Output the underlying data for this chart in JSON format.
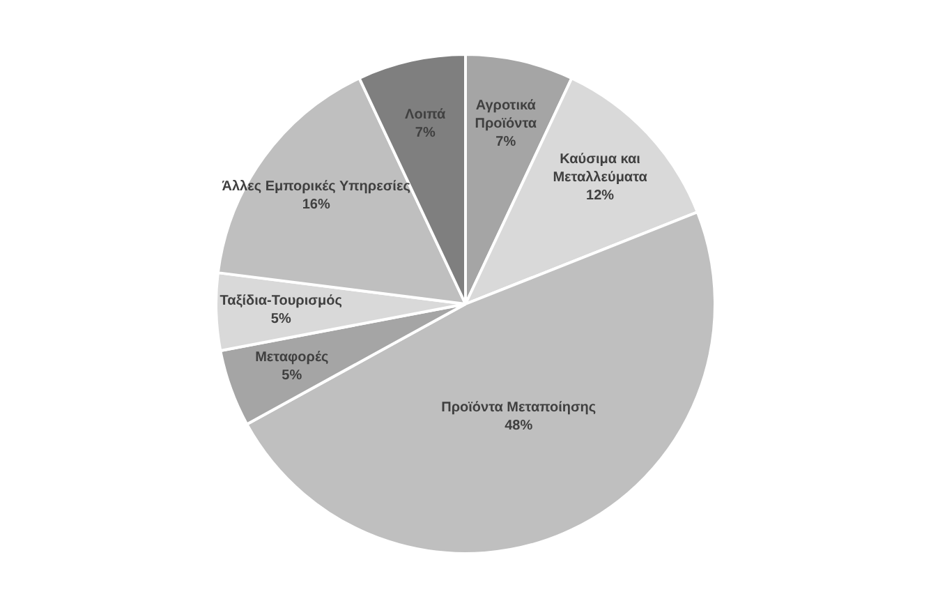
{
  "chart_data": {
    "type": "pie",
    "categories": [
      "Αγροτικά Προϊόντα",
      "Καύσιμα και Μεταλλεύματα",
      "Προϊόντα Μεταποίησης",
      "Μεταφορές",
      "Ταξίδια-Τουρισμός",
      "Άλλες Εμπορικές Υπηρεσίες",
      "Λοιπά"
    ],
    "values": [
      7,
      12,
      48,
      5,
      5,
      16,
      7
    ],
    "value_labels": [
      "7%",
      "12%",
      "48%",
      "5%",
      "5%",
      "16%",
      "7%"
    ],
    "colors": [
      "#a5a5a5",
      "#d9d9d9",
      "#bfbfbf",
      "#a5a5a5",
      "#d9d9d9",
      "#bfbfbf",
      "#7f7f7f"
    ],
    "legend": false
  }
}
